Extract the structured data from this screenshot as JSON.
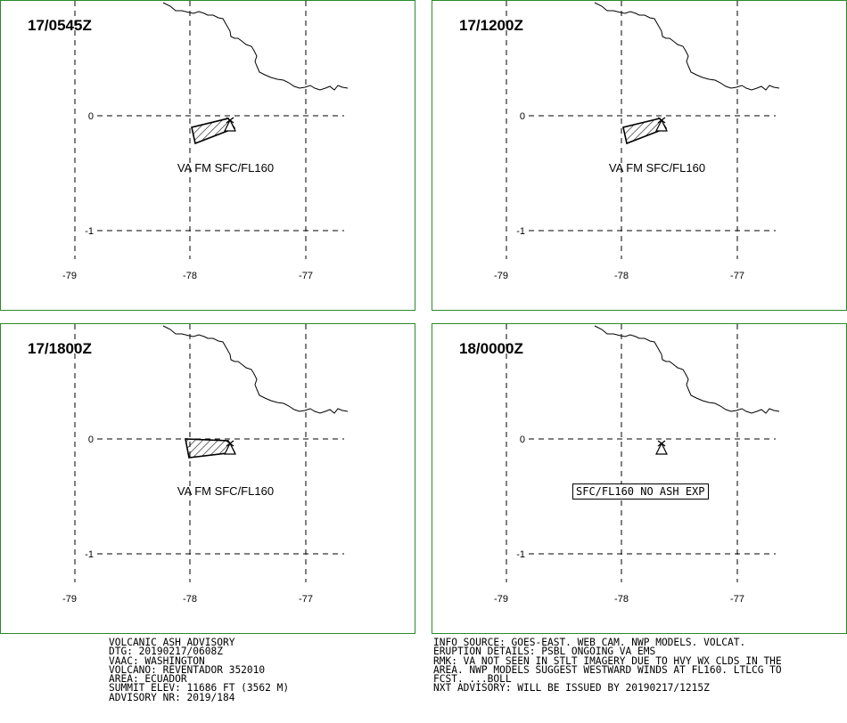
{
  "panels": [
    {
      "time": "17/0545Z",
      "label": "VA FM SFC/FL160",
      "has_ash": true,
      "polygon": "p1"
    },
    {
      "time": "17/1200Z",
      "label": "VA FM SFC/FL160",
      "has_ash": true,
      "polygon": "p1"
    },
    {
      "time": "17/1800Z",
      "label": "VA FM SFC/FL160",
      "has_ash": true,
      "polygon": "p2"
    },
    {
      "time": "18/0000Z",
      "label": "SFC/FL160 NO ASH EXP",
      "has_ash": false
    }
  ],
  "axes": {
    "lon_ticks": [
      "-79",
      "-78",
      "-77"
    ],
    "lat_ticks": [
      "0",
      "-1"
    ]
  },
  "advisory_left": [
    "VOLCANIC ASH ADVISORY",
    "DTG: 20190217/0608Z",
    "VAAC: WASHINGTON",
    "VOLCANO: REVENTADOR 352010",
    "AREA: ECUADOR",
    "SUMMIT ELEV: 11686 FT (3562 M)",
    "ADVISORY NR: 2019/184"
  ],
  "advisory_right": [
    "INFO SOURCE: GOES-EAST. WEB CAM. NWP MODELS. VOLCAT.",
    "ERUPTION DETAILS: PSBL ONGOING VA EMS",
    "RMK: VA NOT SEEN IN STLT IMAGERY DUE TO HVY WX CLDS IN THE",
    "AREA. NWP MODELS SUGGEST WESTWARD WINDS AT FL160. LTLCG TO",
    "FCST. ...BOLL",
    "NXT ADVISORY: WILL BE ISSUED BY 20190217/1215Z"
  ],
  "colors": {
    "frame": "#2a8a2a",
    "lines": "#000000"
  }
}
